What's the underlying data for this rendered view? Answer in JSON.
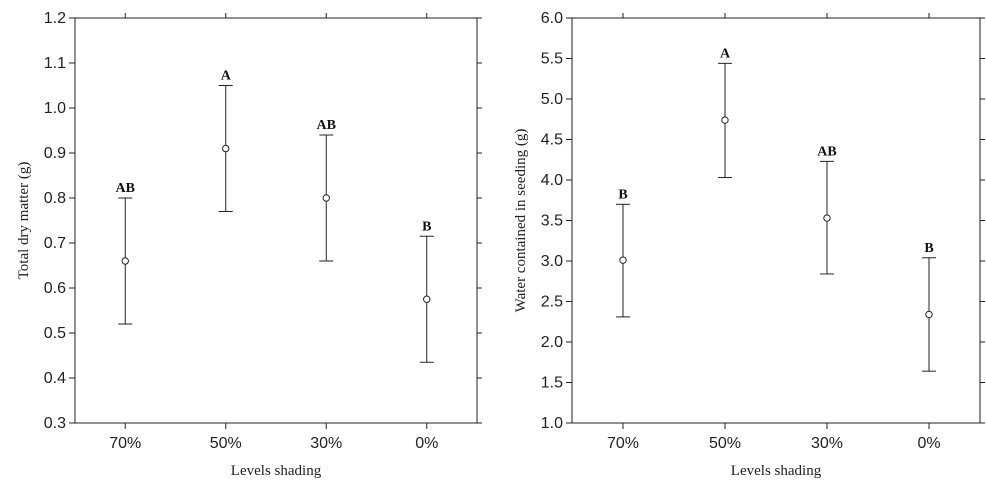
{
  "chart_data": [
    {
      "type": "errorbar",
      "title": "",
      "xlabel": "Levels shading",
      "ylabel": "Total dry matter (g)",
      "ylim": [
        0.3,
        1.2
      ],
      "yticks": [
        "0.3",
        "0.4",
        "0.5",
        "0.6",
        "0.7",
        "0.8",
        "0.9",
        "1.0",
        "1.1",
        "1.2"
      ],
      "categories": [
        "70%",
        "50%",
        "30%",
        "0%"
      ],
      "grid": false,
      "legend": "none",
      "points": [
        {
          "category": "70%",
          "mean": 0.66,
          "lower": 0.52,
          "upper": 0.8,
          "group": "AB"
        },
        {
          "category": "50%",
          "mean": 0.91,
          "lower": 0.77,
          "upper": 1.05,
          "group": "A"
        },
        {
          "category": "30%",
          "mean": 0.8,
          "lower": 0.66,
          "upper": 0.94,
          "group": "AB"
        },
        {
          "category": "0%",
          "mean": 0.575,
          "lower": 0.435,
          "upper": 0.715,
          "group": "B"
        }
      ]
    },
    {
      "type": "errorbar",
      "title": "",
      "xlabel": "Levels shading",
      "ylabel": "Water contained in seeding (g)",
      "ylim": [
        1.0,
        6.0
      ],
      "yticks": [
        "1.0",
        "1.5",
        "2.0",
        "2.5",
        "3.0",
        "3.5",
        "4.0",
        "4.5",
        "5.0",
        "5.5",
        "6.0"
      ],
      "categories": [
        "70%",
        "50%",
        "30%",
        "0%"
      ],
      "grid": false,
      "legend": "none",
      "points": [
        {
          "category": "70%",
          "mean": 3.01,
          "lower": 2.31,
          "upper": 3.7,
          "group": "B"
        },
        {
          "category": "50%",
          "mean": 4.74,
          "lower": 4.03,
          "upper": 5.44,
          "group": "A"
        },
        {
          "category": "30%",
          "mean": 3.53,
          "lower": 2.84,
          "upper": 4.23,
          "group": "AB"
        },
        {
          "category": "0%",
          "mean": 2.34,
          "lower": 1.64,
          "upper": 3.04,
          "group": "B"
        }
      ]
    }
  ]
}
